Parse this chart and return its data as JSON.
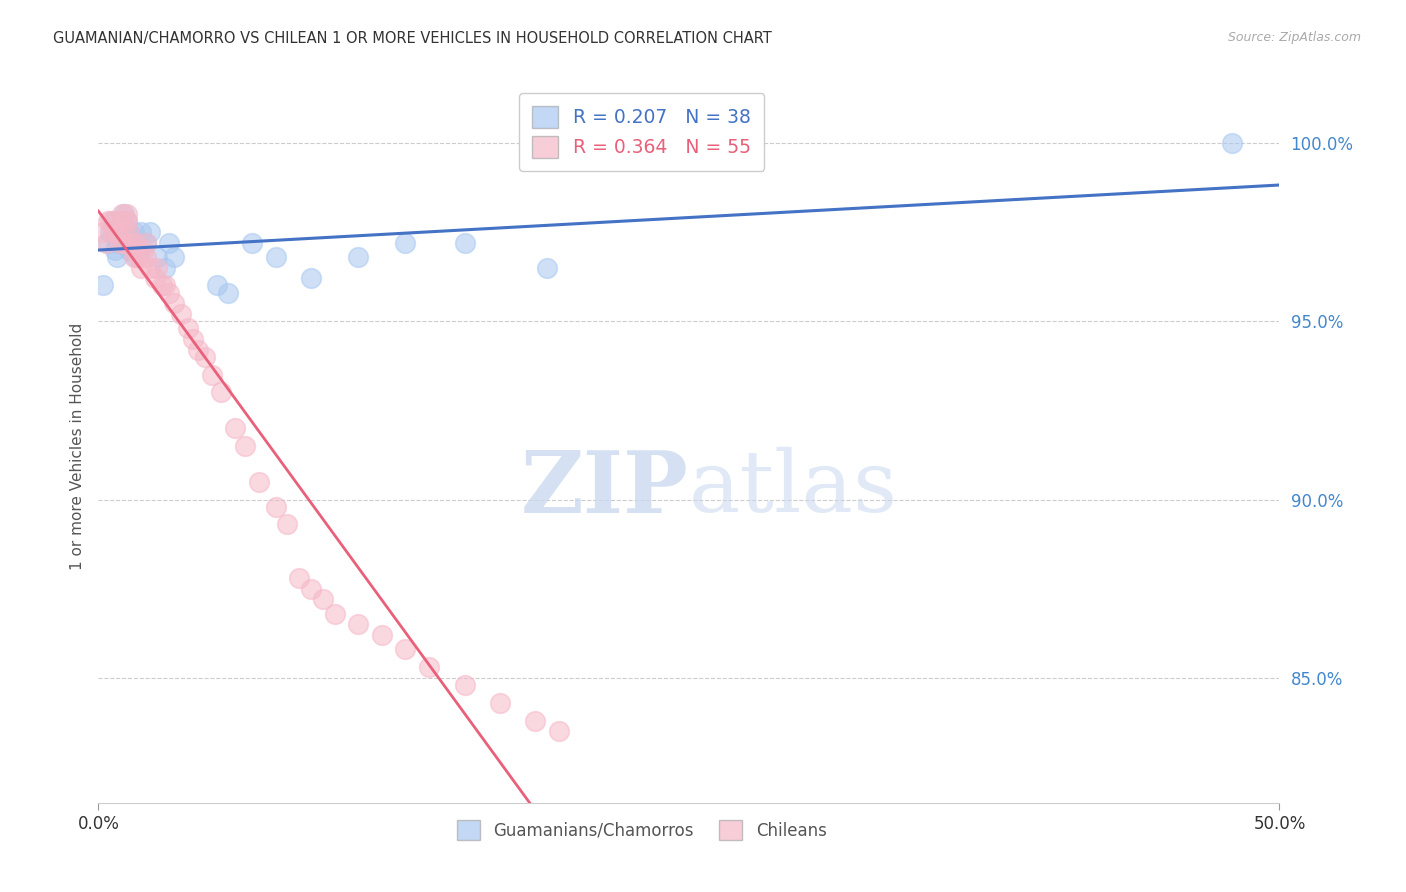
{
  "title": "GUAMANIAN/CHAMORRO VS CHILEAN 1 OR MORE VEHICLES IN HOUSEHOLD CORRELATION CHART",
  "source": "Source: ZipAtlas.com",
  "ylabel": "1 or more Vehicles in Household",
  "ytick_labels": [
    "100.0%",
    "95.0%",
    "90.0%",
    "85.0%"
  ],
  "ytick_values": [
    1.0,
    0.95,
    0.9,
    0.85
  ],
  "xlim": [
    0.0,
    0.5
  ],
  "ylim": [
    0.815,
    1.015
  ],
  "legend_blue_R": "R = 0.207",
  "legend_blue_N": "N = 38",
  "legend_pink_R": "R = 0.364",
  "legend_pink_N": "N = 55",
  "blue_color": "#A8C8F0",
  "pink_color": "#F5B8C8",
  "blue_line_color": "#4472C4",
  "pink_line_color": "#E8607A",
  "legend_label_blue": "Guamanians/Chamorros",
  "legend_label_pink": "Chileans",
  "watermark_zip": "ZIP",
  "watermark_atlas": "atlas",
  "blue_x": [
    0.002,
    0.004,
    0.005,
    0.006,
    0.007,
    0.007,
    0.008,
    0.008,
    0.009,
    0.01,
    0.01,
    0.011,
    0.011,
    0.012,
    0.012,
    0.013,
    0.013,
    0.014,
    0.015,
    0.016,
    0.017,
    0.018,
    0.02,
    0.022,
    0.025,
    0.028,
    0.03,
    0.032,
    0.05,
    0.055,
    0.065,
    0.075,
    0.09,
    0.11,
    0.13,
    0.155,
    0.19,
    0.48
  ],
  "blue_y": [
    0.96,
    0.972,
    0.975,
    0.978,
    0.975,
    0.97,
    0.972,
    0.968,
    0.972,
    0.975,
    0.978,
    0.98,
    0.972,
    0.978,
    0.975,
    0.97,
    0.975,
    0.972,
    0.975,
    0.968,
    0.97,
    0.975,
    0.972,
    0.975,
    0.968,
    0.965,
    0.972,
    0.968,
    0.96,
    0.958,
    0.972,
    0.968,
    0.962,
    0.968,
    0.972,
    0.972,
    0.965,
    1.0
  ],
  "pink_x": [
    0.002,
    0.003,
    0.004,
    0.005,
    0.006,
    0.007,
    0.008,
    0.009,
    0.01,
    0.01,
    0.011,
    0.011,
    0.012,
    0.012,
    0.013,
    0.014,
    0.015,
    0.015,
    0.016,
    0.017,
    0.018,
    0.019,
    0.02,
    0.02,
    0.022,
    0.024,
    0.025,
    0.027,
    0.028,
    0.03,
    0.032,
    0.035,
    0.038,
    0.04,
    0.042,
    0.045,
    0.048,
    0.052,
    0.058,
    0.062,
    0.068,
    0.075,
    0.08,
    0.085,
    0.09,
    0.095,
    0.1,
    0.11,
    0.12,
    0.13,
    0.14,
    0.155,
    0.17,
    0.185,
    0.195
  ],
  "pink_y": [
    0.975,
    0.972,
    0.978,
    0.978,
    0.975,
    0.978,
    0.975,
    0.972,
    0.98,
    0.978,
    0.975,
    0.972,
    0.978,
    0.98,
    0.975,
    0.972,
    0.97,
    0.968,
    0.972,
    0.968,
    0.965,
    0.97,
    0.968,
    0.972,
    0.965,
    0.962,
    0.965,
    0.96,
    0.96,
    0.958,
    0.955,
    0.952,
    0.948,
    0.945,
    0.942,
    0.94,
    0.935,
    0.93,
    0.92,
    0.915,
    0.905,
    0.898,
    0.893,
    0.878,
    0.875,
    0.872,
    0.868,
    0.865,
    0.862,
    0.858,
    0.853,
    0.848,
    0.843,
    0.838,
    0.835
  ]
}
